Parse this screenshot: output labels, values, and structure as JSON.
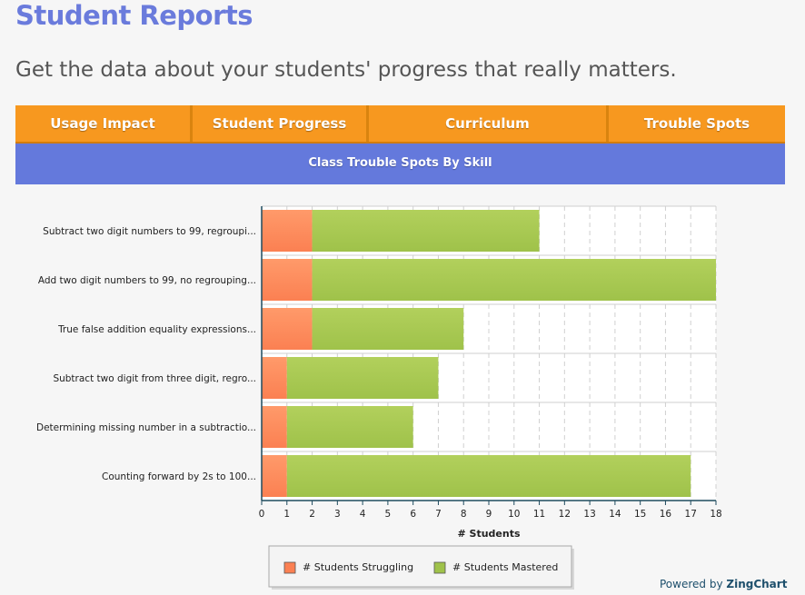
{
  "header": {
    "title": "Student Reports",
    "subtitle": "Get the data about your students' progress that really matters."
  },
  "tabs": [
    {
      "label": "Usage Impact"
    },
    {
      "label": "Student Progress"
    },
    {
      "label": "Curriculum"
    },
    {
      "label": "Trouble Spots"
    }
  ],
  "section_title": "Class Trouble Spots By Skill",
  "colors": {
    "struggling": "#fb8052",
    "mastered": "#9fc24a",
    "accent": "#6479dc",
    "tab": "#f7981f"
  },
  "chart_data": {
    "type": "bar",
    "orientation": "horizontal",
    "stacked": true,
    "title": "Class Trouble Spots By Skill",
    "xlabel": "# Students",
    "ylabel": "",
    "xlim": [
      0,
      18
    ],
    "xticks": [
      0,
      1,
      2,
      3,
      4,
      5,
      6,
      7,
      8,
      9,
      10,
      11,
      12,
      13,
      14,
      15,
      16,
      17,
      18
    ],
    "categories": [
      "Subtract two digit numbers to 99, regroupi...",
      "Add two digit numbers to 99, no regrouping...",
      "True false addition equality expressions...",
      "Subtract two digit from three digit, regro...",
      "Determining missing number in a subtractio...",
      "Counting forward by 2s to 100..."
    ],
    "series": [
      {
        "name": "# Students Struggling",
        "values": [
          2,
          2,
          2,
          1,
          1,
          1
        ]
      },
      {
        "name": "# Students Mastered",
        "values": [
          9,
          16,
          6,
          6,
          5,
          16
        ]
      }
    ],
    "grid": true,
    "legend": "bottom-center"
  },
  "footer": {
    "powered_prefix": "Powered by ",
    "powered_brand": "ZingChart"
  }
}
